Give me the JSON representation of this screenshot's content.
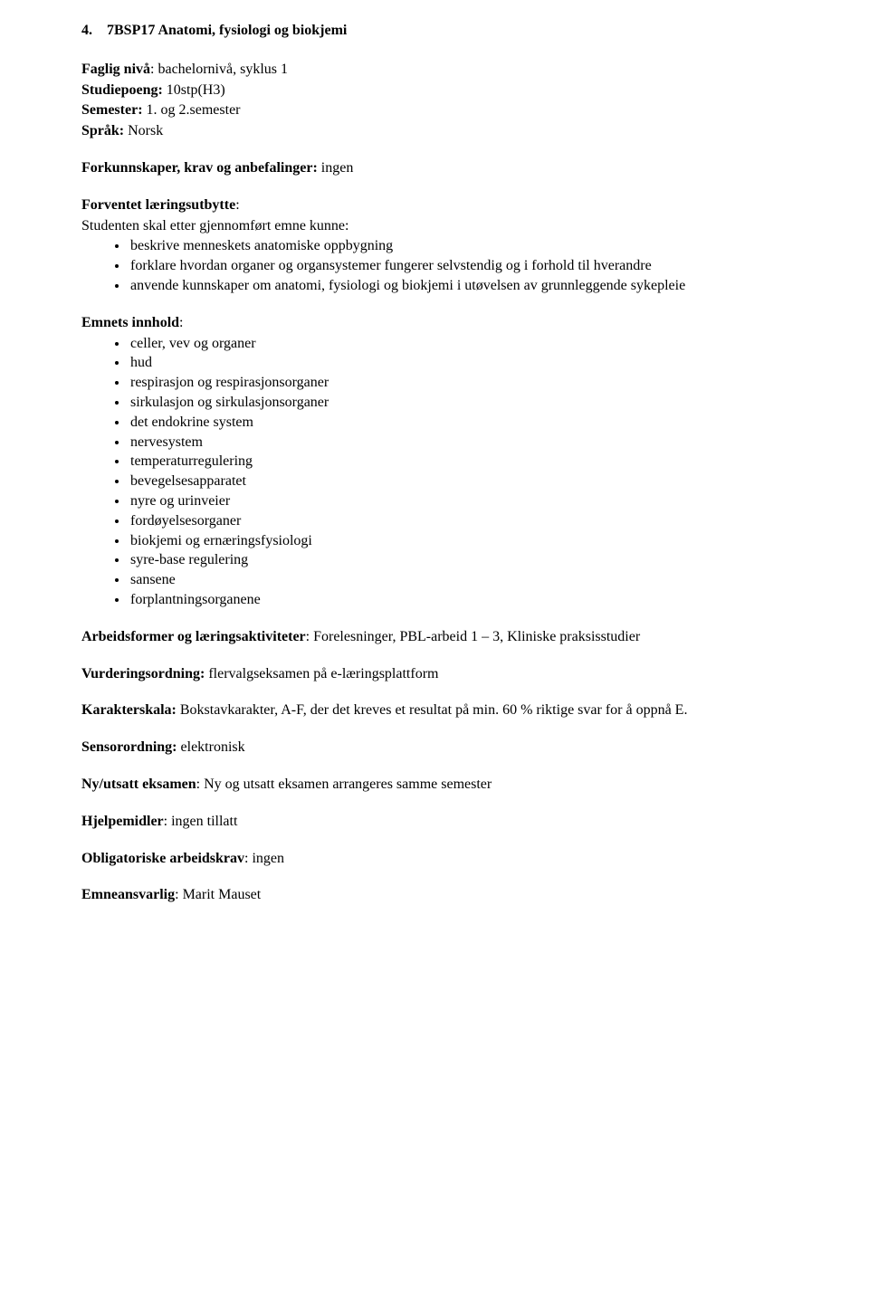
{
  "heading": {
    "number": "4.",
    "title": "7BSP17 Anatomi, fysiologi og biokjemi"
  },
  "meta": {
    "faglig_label": "Faglig nivå",
    "faglig_value": ": bachelornivå, syklus 1",
    "studiepoeng_label": "Studiepoeng:",
    "studiepoeng_value": " 10stp(H3)",
    "semester_label": "Semester:",
    "semester_value": " 1. og 2.semester",
    "sprak_label": "Språk:",
    "sprak_value": " Norsk"
  },
  "forkunnskaper": {
    "label": "Forkunnskaper, krav og anbefalinger:",
    "value": " ingen"
  },
  "forventet": {
    "label": "Forventet læringsutbytte",
    "colon": ":",
    "intro": "Studenten skal etter gjennomført emne kunne:",
    "items": [
      "beskrive menneskets anatomiske oppbygning",
      "forklare hvordan organer og organsystemer fungerer selvstendig og i forhold til hverandre",
      "anvende kunnskaper om anatomi, fysiologi og biokjemi i utøvelsen av grunnleggende sykepleie"
    ]
  },
  "innhold": {
    "label": "Emnets innhold",
    "colon": ":",
    "items": [
      "celler, vev og organer",
      "hud",
      "respirasjon og respirasjonsorganer",
      "sirkulasjon og sirkulasjonsorganer",
      "det endokrine system",
      "nervesystem",
      "temperaturregulering",
      "bevegelsesapparatet",
      "nyre og urinveier",
      "fordøyelsesorganer",
      "biokjemi og ernæringsfysiologi",
      "syre-base regulering",
      "sansene",
      "forplantningsorganene"
    ]
  },
  "arbeidsformer": {
    "label": "Arbeidsformer og læringsaktiviteter",
    "value": ": Forelesninger, PBL-arbeid 1 – 3, Kliniske praksisstudier"
  },
  "vurdering": {
    "label": "Vurderingsordning:",
    "value": " flervalgseksamen på e-læringsplattform"
  },
  "karakter": {
    "label": "Karakterskala:",
    "value": " Bokstavkarakter, A-F, der det kreves et resultat på min. 60 % riktige svar for å oppnå E."
  },
  "sensor": {
    "label": "Sensorordning:",
    "value": " elektronisk"
  },
  "nyutsatt": {
    "label": "Ny/utsatt eksamen",
    "value": ": Ny og utsatt eksamen arrangeres samme semester"
  },
  "hjelpemidler": {
    "label": "Hjelpemidler",
    "value": ": ingen tillatt"
  },
  "obligatorisk": {
    "label": "Obligatoriske arbeidskrav",
    "value": ": ingen"
  },
  "emneansvarlig": {
    "label": "Emneansvarlig",
    "value": ": Marit Mauset"
  }
}
